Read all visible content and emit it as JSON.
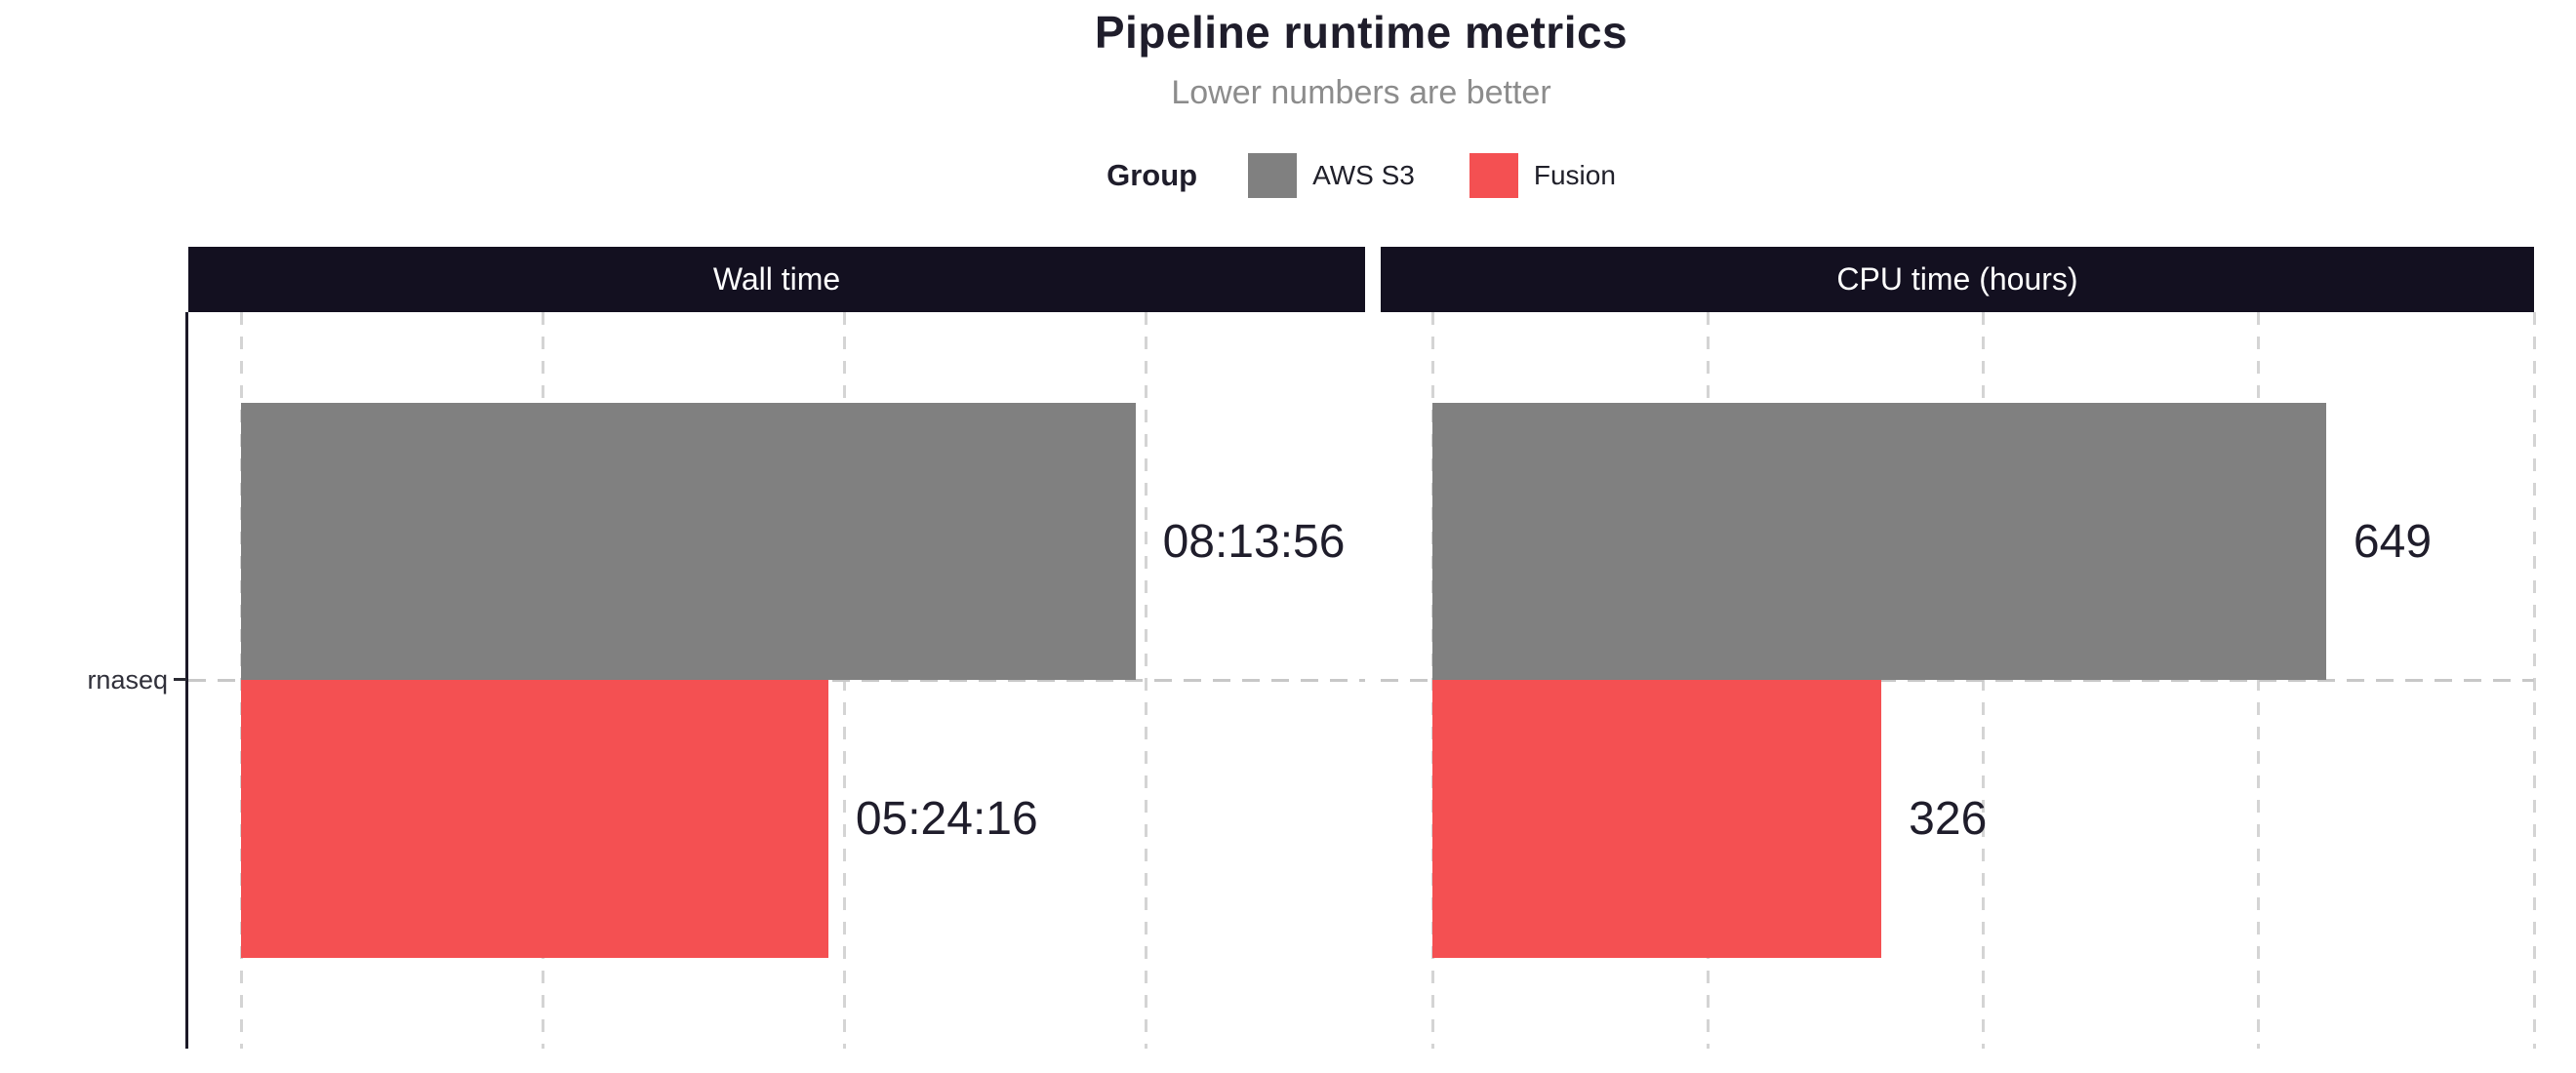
{
  "chart_data": {
    "type": "bar",
    "orientation": "horizontal",
    "title": "Pipeline runtime metrics",
    "subtitle": "Lower numbers are better",
    "legend": {
      "title": "Group",
      "position": "top",
      "entries": [
        {
          "label": "AWS S3",
          "color": "#808080"
        },
        {
          "label": "Fusion",
          "color": "#f45052"
        }
      ]
    },
    "categories": [
      "rnaseq"
    ],
    "panels": [
      {
        "title": "Wall time",
        "unit": "seconds",
        "xlim": [
          0,
          37250
        ],
        "gridline_values": [
          0,
          10000,
          20000,
          30000
        ],
        "series": [
          {
            "name": "AWS S3",
            "value": 29636,
            "label": "08:13:56"
          },
          {
            "name": "Fusion",
            "value": 19456,
            "label": "05:24:16"
          }
        ]
      },
      {
        "title": "CPU time (hours)",
        "unit": "hours",
        "xlim": [
          0,
          800
        ],
        "gridline_values": [
          0,
          200,
          400,
          600,
          800
        ],
        "series": [
          {
            "name": "AWS S3",
            "value": 649,
            "label": "649"
          },
          {
            "name": "Fusion",
            "value": 326,
            "label": "326"
          }
        ]
      }
    ],
    "grid": {
      "vertical_dashed": true,
      "horizontal_category_dashed": true,
      "x_axis_tick_labels": false
    },
    "colors": {
      "strip_bg": "#131020",
      "strip_text": "#ffffff",
      "title_text": "#1f1d2b",
      "subtitle_text": "#8c8c8c",
      "value_label_text": "#1f1d2b",
      "gridline": "#d4d4d4",
      "axis_line": "#1b1927"
    }
  }
}
